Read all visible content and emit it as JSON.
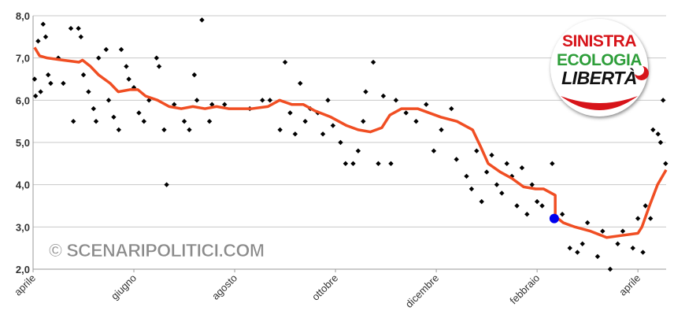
{
  "chart_data": {
    "type": "scatter",
    "xlim": [
      0,
      12.56
    ],
    "ylim": [
      2,
      8
    ],
    "xticks": [
      {
        "value": 0,
        "label": "aprile"
      },
      {
        "value": 2,
        "label": "giugno"
      },
      {
        "value": 4,
        "label": "agosto"
      },
      {
        "value": 6,
        "label": "ottobre"
      },
      {
        "value": 8,
        "label": "dicembre"
      },
      {
        "value": 10,
        "label": "febbraio"
      },
      {
        "value": 12,
        "label": "aprile"
      }
    ],
    "yticks": [
      {
        "value": 2,
        "label": "2,0"
      },
      {
        "value": 3,
        "label": "3,0"
      },
      {
        "value": 4,
        "label": "4,0"
      },
      {
        "value": 5,
        "label": "5,0"
      },
      {
        "value": 6,
        "label": "6,0"
      },
      {
        "value": 7,
        "label": "7,0"
      },
      {
        "value": 8,
        "label": "8,0"
      }
    ],
    "grid": true,
    "annotations": [
      "© SCENARIPOLITICI.COM"
    ],
    "logo_lines": [
      "SINISTRA",
      "ECOLOGIA",
      "LIBERTÀ"
    ],
    "series": [
      {
        "type": "scatter",
        "color": "#000000",
        "x": [
          0.03,
          0.05,
          0.1,
          0.15,
          0.2,
          0.25,
          0.3,
          0.35,
          0.5,
          0.6,
          0.75,
          0.8,
          0.9,
          0.95,
          1.0,
          1.1,
          1.2,
          1.25,
          1.3,
          1.45,
          1.5,
          1.6,
          1.7,
          1.75,
          1.85,
          1.9,
          2.0,
          2.1,
          2.2,
          2.3,
          2.45,
          2.5,
          2.6,
          2.65,
          2.8,
          3.0,
          3.1,
          3.2,
          3.25,
          3.35,
          3.5,
          3.55,
          3.8,
          4.3,
          4.55,
          4.7,
          4.9,
          5.0,
          5.1,
          5.2,
          5.3,
          5.4,
          5.5,
          5.65,
          5.75,
          5.85,
          5.95,
          6.1,
          6.2,
          6.35,
          6.45,
          6.55,
          6.6,
          6.75,
          6.85,
          6.95,
          7.1,
          7.2,
          7.4,
          7.6,
          7.8,
          7.95,
          8.1,
          8.3,
          8.4,
          8.6,
          8.7,
          8.8,
          8.9,
          9.0,
          9.1,
          9.2,
          9.3,
          9.4,
          9.5,
          9.6,
          9.7,
          9.8,
          9.9,
          10.0,
          10.1,
          10.3,
          10.5,
          10.65,
          10.8,
          10.9,
          11.0,
          11.2,
          11.3,
          11.45,
          11.6,
          11.7,
          11.9,
          12.0,
          12.1,
          12.15,
          12.25,
          12.3,
          12.4,
          12.45,
          12.5,
          12.55
        ],
        "values": [
          6.5,
          6.1,
          7.4,
          6.2,
          7.8,
          7.5,
          6.6,
          6.4,
          7.0,
          6.4,
          7.7,
          5.5,
          7.7,
          7.5,
          6.6,
          6.2,
          5.8,
          5.5,
          7.0,
          7.2,
          6.0,
          5.6,
          5.3,
          7.2,
          6.8,
          6.5,
          6.3,
          5.7,
          5.5,
          6.0,
          7.0,
          6.8,
          5.3,
          4.0,
          5.9,
          5.5,
          5.3,
          6.6,
          6.0,
          7.9,
          5.5,
          5.9,
          5.9,
          5.8,
          6.0,
          6.0,
          5.3,
          6.9,
          5.7,
          5.2,
          6.4,
          5.5,
          5.8,
          5.7,
          5.2,
          6.0,
          5.4,
          5.0,
          4.5,
          4.5,
          4.8,
          5.5,
          6.2,
          6.9,
          4.5,
          6.1,
          4.5,
          6.0,
          5.7,
          5.5,
          5.9,
          4.8,
          5.3,
          5.8,
          4.6,
          4.2,
          3.9,
          4.8,
          3.6,
          4.3,
          4.7,
          4.0,
          3.8,
          4.5,
          4.2,
          3.5,
          4.4,
          3.3,
          4.0,
          3.6,
          3.5,
          4.5,
          3.3,
          2.5,
          2.4,
          2.6,
          3.1,
          2.3,
          2.9,
          2.0,
          2.6,
          2.9,
          2.5,
          3.2,
          2.4,
          3.5,
          3.2,
          5.3,
          5.2,
          5.0,
          6.0,
          4.5
        ]
      },
      {
        "type": "line",
        "color": "#f04e23",
        "x": [
          0.03,
          0.13,
          0.28,
          0.59,
          0.91,
          0.98,
          1.14,
          1.3,
          1.53,
          1.69,
          1.92,
          2.08,
          2.23,
          2.47,
          2.7,
          2.94,
          3.17,
          3.41,
          3.64,
          3.88,
          4.34,
          4.66,
          4.89,
          5.13,
          5.36,
          5.59,
          5.91,
          6.22,
          6.45,
          6.69,
          6.92,
          7.08,
          7.31,
          7.63,
          7.86,
          8.09,
          8.41,
          8.72,
          8.88,
          9.03,
          9.27,
          9.5,
          9.73,
          9.97,
          10.13,
          10.36,
          10.36,
          10.52,
          10.75,
          11.06,
          11.38,
          11.69,
          12.0,
          12.08,
          12.23,
          12.39,
          12.56
        ],
        "values": [
          7.25,
          7.05,
          7.0,
          6.95,
          6.9,
          6.95,
          6.8,
          6.6,
          6.4,
          6.2,
          6.25,
          6.25,
          6.1,
          6.0,
          5.85,
          5.8,
          5.85,
          5.8,
          5.85,
          5.8,
          5.8,
          5.85,
          6.0,
          5.9,
          5.9,
          5.75,
          5.6,
          5.4,
          5.3,
          5.25,
          5.35,
          5.65,
          5.8,
          5.8,
          5.7,
          5.6,
          5.5,
          5.3,
          4.9,
          4.5,
          4.3,
          4.15,
          3.95,
          3.9,
          3.9,
          3.75,
          3.25,
          3.1,
          3.0,
          2.9,
          2.75,
          2.8,
          2.85,
          3.0,
          3.5,
          4.0,
          4.35
        ]
      },
      {
        "type": "scatter",
        "color": "#0000ee",
        "size": 6,
        "x": [
          10.34
        ],
        "values": [
          3.2
        ]
      }
    ]
  }
}
